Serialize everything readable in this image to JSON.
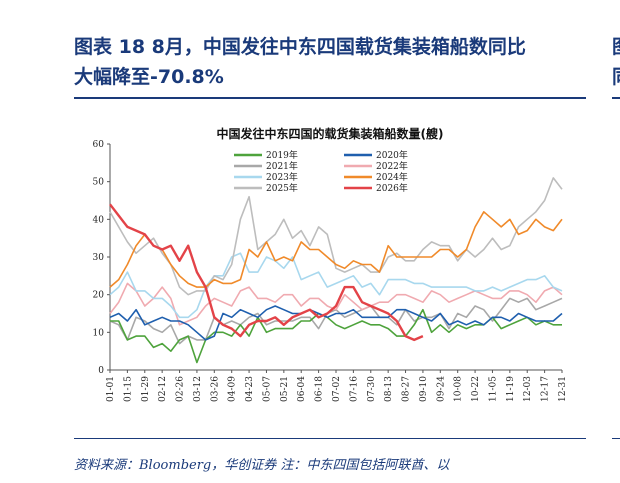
{
  "header": {
    "title_line1": "图表 18   8月，中国发往中东四国载货集装箱船数同比",
    "title_line2": "大幅降至-70.8%",
    "right_stub_line1": "图",
    "right_stub_line2": "同"
  },
  "footer": {
    "source": "资料来源：Bloomberg，华创证券    注：中东四国包括阿联酋、以"
  },
  "chart_data": {
    "type": "line",
    "title": "中国发往中东四国的载货集装箱船数量(艘)",
    "xlabel": "",
    "ylabel": "",
    "ylim": [
      0,
      60
    ],
    "yticks": [
      0,
      10,
      20,
      30,
      40,
      50,
      60
    ],
    "xtick_labels": [
      "01-01",
      "01-15",
      "01-29",
      "02-12",
      "02-26",
      "03-12",
      "03-26",
      "04-09",
      "04-23",
      "05-07",
      "05-21",
      "06-04",
      "06-18",
      "07-02",
      "07-16",
      "07-30",
      "08-13",
      "08-27",
      "09-10",
      "09-24",
      "10-08",
      "10-22",
      "11-05",
      "11-19",
      "12-03",
      "12-17",
      "12-31"
    ],
    "grid": false,
    "legend_position": "top-center",
    "series": [
      {
        "name": "2019年",
        "color": "#4ea33c",
        "values": [
          13,
          13,
          8,
          9,
          9,
          6,
          7,
          5,
          8,
          9,
          2,
          8,
          10,
          10,
          9,
          12,
          9,
          14,
          10,
          11,
          11,
          11,
          13,
          13,
          15,
          14,
          12,
          11,
          12,
          13,
          12,
          12,
          11,
          9,
          9,
          12,
          16,
          10,
          12,
          10,
          12,
          11,
          12,
          12,
          14,
          11,
          12,
          13,
          14,
          12,
          13,
          12,
          12
        ]
      },
      {
        "name": "2020年",
        "color": "#1f5fae",
        "values": [
          14,
          15,
          13,
          16,
          12,
          13,
          14,
          13,
          13,
          12,
          10,
          8,
          9,
          15,
          14,
          16,
          15,
          14,
          16,
          17,
          16,
          15,
          15,
          16,
          15,
          14,
          15,
          15,
          16,
          14,
          14,
          14,
          14,
          16,
          16,
          15,
          14,
          13,
          15,
          12,
          13,
          12,
          13,
          12,
          14,
          14,
          13,
          15,
          14,
          13,
          13,
          13,
          15
        ]
      },
      {
        "name": "2021年",
        "color": "#a8a8a8",
        "values": [
          13,
          12,
          8,
          14,
          13,
          11,
          10,
          12,
          7,
          9,
          8,
          8,
          14,
          12,
          13,
          12,
          14,
          15,
          12,
          13,
          13,
          13,
          14,
          14,
          11,
          15,
          16,
          14,
          15,
          16,
          17,
          14,
          14,
          12,
          16,
          13,
          14,
          14,
          15,
          11,
          15,
          14,
          17,
          16,
          13,
          16,
          19,
          18,
          19,
          16,
          17,
          18,
          19
        ]
      },
      {
        "name": "2022年",
        "color": "#f0aab0",
        "values": [
          15,
          18,
          23,
          21,
          17,
          19,
          22,
          19,
          12,
          13,
          14,
          17,
          19,
          18,
          17,
          21,
          22,
          19,
          19,
          18,
          20,
          20,
          17,
          19,
          19,
          17,
          16,
          20,
          18,
          16,
          17,
          18,
          18,
          20,
          20,
          19,
          18,
          21,
          20,
          18,
          19,
          20,
          21,
          20,
          19,
          19,
          21,
          21,
          20,
          18,
          21,
          22,
          20
        ]
      },
      {
        "name": "2023年",
        "color": "#a8d8ee",
        "values": [
          20,
          22,
          26,
          21,
          21,
          19,
          19,
          17,
          14,
          14,
          16,
          22,
          25,
          25,
          30,
          31,
          26,
          26,
          30,
          29,
          27,
          30,
          24,
          25,
          26,
          22,
          23,
          24,
          25,
          22,
          23,
          20,
          24,
          24,
          24,
          23,
          23,
          22,
          22,
          22,
          22,
          22,
          21,
          21,
          22,
          21,
          22,
          23,
          24,
          24,
          25,
          22,
          21
        ]
      },
      {
        "name": "2024年",
        "color": "#f08a2a",
        "values": [
          22,
          24,
          28,
          33,
          36,
          33,
          32,
          28,
          25,
          23,
          22,
          22,
          24,
          23,
          23,
          24,
          32,
          30,
          34,
          29,
          30,
          29,
          34,
          32,
          32,
          30,
          28,
          27,
          29,
          28,
          28,
          26,
          33,
          30,
          30,
          30,
          30,
          30,
          32,
          32,
          30,
          32,
          38,
          42,
          40,
          38,
          40,
          36,
          37,
          40,
          38,
          37,
          40
        ]
      },
      {
        "name": "2025年",
        "color": "#bdbdbd",
        "values": [
          42,
          38,
          34,
          31,
          33,
          35,
          31,
          28,
          22,
          20,
          21,
          21,
          25,
          24,
          28,
          40,
          46,
          32,
          34,
          36,
          40,
          35,
          37,
          33,
          38,
          36,
          27,
          26,
          27,
          28,
          26,
          26,
          30,
          31,
          29,
          29,
          32,
          34,
          33,
          33,
          29,
          32,
          30,
          32,
          35,
          32,
          33,
          38,
          40,
          42,
          45,
          51,
          48
        ]
      },
      {
        "name": "2026年",
        "color": "#e34348",
        "values": [
          44,
          41,
          38,
          37,
          36,
          33,
          32,
          33,
          29,
          33,
          26,
          22,
          14,
          12,
          11,
          9,
          12,
          13,
          13,
          14,
          12,
          14,
          15,
          16,
          14,
          15,
          17,
          22,
          22,
          18,
          17,
          16,
          15,
          13,
          9,
          8,
          9
        ]
      }
    ]
  }
}
